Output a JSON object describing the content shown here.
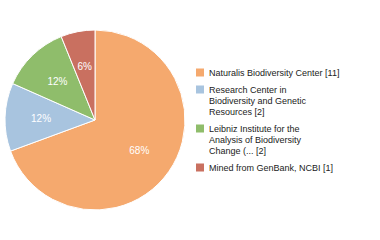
{
  "chart_data": {
    "type": "pie",
    "categories": [
      "Naturalis Biodiversity Center [11]",
      "Research Center in\nBiodiversity and Genetic\nResources [2]",
      "Leibniz Institute for the\nAnalysis of Biodiversity\nChange (... [2]",
      "Mined from GenBank, NCBI [1]"
    ],
    "values": [
      68,
      12,
      12,
      6
    ],
    "value_labels": [
      "68%",
      "12%",
      "12%",
      "6%"
    ],
    "colors": [
      "#F5A96E",
      "#A8C4DF",
      "#8FBD6B",
      "#C97060"
    ],
    "data_labels": true,
    "legend": "right"
  }
}
